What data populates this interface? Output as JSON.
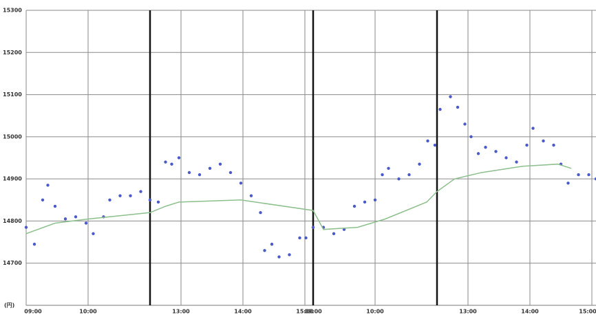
{
  "chart_data": {
    "type": "scatter",
    "y_unit": "(円)",
    "xlim": [
      0,
      552
    ],
    "ylim": [
      14600,
      15300
    ],
    "yticks": [
      14700,
      14800,
      14900,
      15000,
      15100,
      15200,
      15300
    ],
    "xticks": [
      {
        "value": 0,
        "label": "09:00"
      },
      {
        "value": 60,
        "label": "10:00"
      },
      {
        "value": 150,
        "label": "13:00"
      },
      {
        "value": 210,
        "label": "14:00"
      },
      {
        "value": 270,
        "label": "15:00"
      },
      {
        "value": 278,
        "label": "09:00"
      },
      {
        "value": 338,
        "label": "10:00"
      },
      {
        "value": 428,
        "label": "13:00"
      },
      {
        "value": 488,
        "label": "14:00"
      },
      {
        "value": 548,
        "label": "15:00"
      }
    ],
    "session_breaks": [
      120,
      278,
      398
    ],
    "grid": true,
    "series": [
      {
        "style": "dots",
        "color": "#4a5ac8",
        "x": [
          0,
          8,
          16,
          21,
          28,
          38,
          48,
          58,
          65,
          75,
          81,
          91,
          101,
          111,
          120,
          128,
          135,
          141,
          148,
          158,
          168,
          178,
          188,
          198,
          208,
          218,
          227,
          231,
          238,
          245,
          255,
          265,
          271,
          278,
          288,
          298,
          308,
          318,
          328,
          338,
          345,
          351,
          361,
          371,
          381,
          389,
          396,
          401,
          411,
          418,
          425,
          431,
          438,
          445,
          455,
          465,
          475,
          485,
          491,
          501,
          511,
          518,
          525,
          535,
          545,
          552
        ],
        "values": [
          14785,
          14745,
          14850,
          14885,
          14835,
          14805,
          14810,
          14795,
          14770,
          14810,
          14850,
          14860,
          14860,
          14870,
          14850,
          14845,
          14940,
          14935,
          14950,
          14915,
          14910,
          14925,
          14935,
          14915,
          14890,
          14860,
          14820,
          14730,
          14745,
          14715,
          14720,
          14760,
          14760,
          14785,
          14785,
          14770,
          14780,
          14835,
          14845,
          14850,
          14910,
          14925,
          14900,
          14910,
          14935,
          14990,
          14980,
          15065,
          15095,
          15070,
          15030,
          15000,
          14960,
          14975,
          14965,
          14950,
          14940,
          14980,
          15020,
          14990,
          14980,
          14935,
          14890,
          14910,
          14910,
          14900
        ]
      },
      {
        "style": "line",
        "color": "#8cbf8c",
        "x": [
          0,
          28,
          61,
          120,
          135,
          148,
          208,
          278,
          288,
          321,
          348,
          388,
          398,
          415,
          441,
          481,
          515,
          528
        ],
        "values": [
          14770,
          14795,
          14805,
          14820,
          14835,
          14845,
          14850,
          14825,
          14780,
          14785,
          14805,
          14845,
          14870,
          14900,
          14915,
          14930,
          14935,
          14925
        ]
      }
    ]
  }
}
